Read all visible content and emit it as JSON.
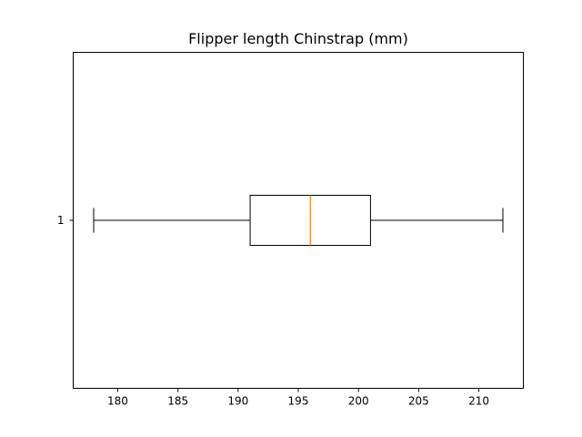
{
  "chart_data": {
    "type": "boxplot",
    "orientation": "horizontal",
    "title": "Flipper length Chinstrap (mm)",
    "xlabel": "",
    "ylabel": "",
    "xlim": [
      176.3,
      213.7
    ],
    "x_ticks": [
      180,
      185,
      190,
      195,
      200,
      205,
      210
    ],
    "x_tick_labels": [
      "180",
      "185",
      "190",
      "195",
      "200",
      "205",
      "210"
    ],
    "y_ticks": [
      1
    ],
    "y_tick_labels": [
      "1"
    ],
    "grid": false,
    "boxes": [
      {
        "position": 1,
        "whisker_low": 178,
        "q1": 191,
        "median": 196,
        "q3": 201,
        "whisker_high": 212
      }
    ],
    "colors": {
      "box": "#000000",
      "median": "#ff7f0e",
      "axes": "#000000",
      "background": "#ffffff"
    }
  }
}
